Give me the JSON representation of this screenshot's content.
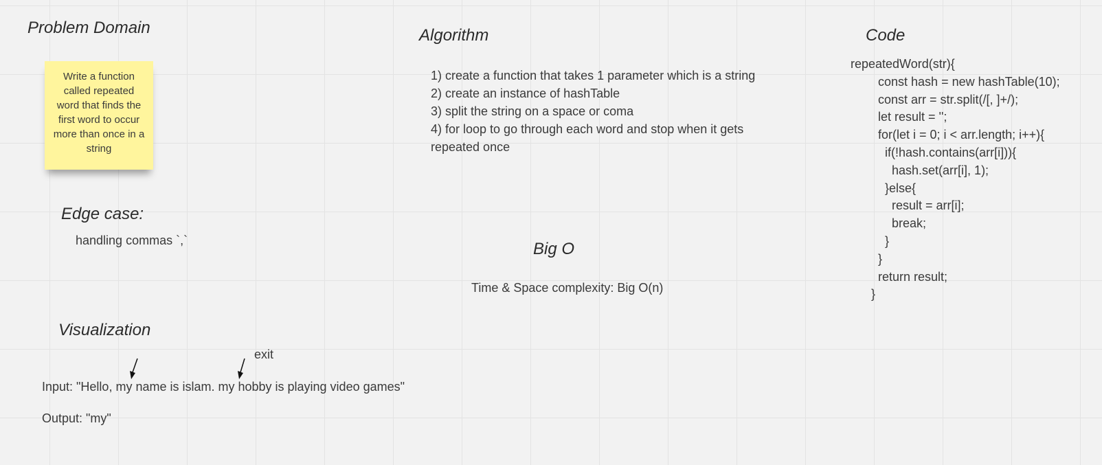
{
  "problem_domain": {
    "heading": "Problem Domain",
    "sticky_note": "Write a function called repeated word that finds the first word to occur more than once in a string"
  },
  "edge_case": {
    "heading": "Edge case:",
    "text": "handling commas `,`"
  },
  "visualization": {
    "heading": "Visualization",
    "exit_label": "exit",
    "input": "Input: \"Hello, my name is islam.  my hobby is playing video games\"",
    "output": "Output: \"my\""
  },
  "algorithm": {
    "heading": "Algorithm",
    "steps": [
      "1) create a function that takes 1 parameter which is a string",
      "2) create an instance of hashTable",
      "3) split the string on a space or coma",
      "4) for loop to go through each word and stop when it gets repeated once"
    ]
  },
  "big_o": {
    "heading": "Big O",
    "text": "Time & Space complexity: Big O(n)"
  },
  "code": {
    "heading": "Code",
    "lines": [
      "repeatedWord(str){",
      "        const hash = new hashTable(10);",
      "        const arr = str.split(/[, ]+/);",
      "        let result = '';",
      "        for(let i = 0; i < arr.length; i++){",
      "          if(!hash.contains(arr[i])){",
      "            hash.set(arr[i], 1);",
      "          }else{",
      "            result = arr[i];",
      "            break;",
      "          }",
      "        }",
      "        return result;",
      "      }"
    ]
  },
  "colors": {
    "background": "#f2f2f2",
    "grid": "#e3e3e3",
    "sticky_note": "#fff59d",
    "text": "#3a3a3a"
  }
}
